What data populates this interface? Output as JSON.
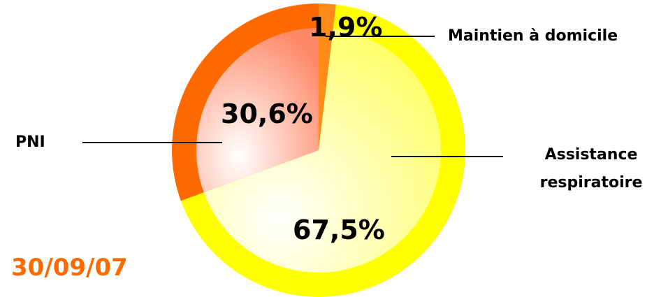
{
  "date_stamp": "30/09/07",
  "chart_data": {
    "type": "pie",
    "categories": [
      "Maintien à domicile",
      "Assistance respiratoire",
      "PNI"
    ],
    "values": [
      1.9,
      67.5,
      30.6
    ],
    "value_labels": [
      "1,9%",
      "67,5%",
      "30,6%"
    ],
    "category_labels": {
      "maintien": "Maintien à domicile",
      "assistance_line1": "Assistance",
      "assistance_line2": "respiratoire",
      "pni": "PNI"
    },
    "colors": {
      "maintien": "#ff8c1a",
      "assistance_ring": "#ffff00",
      "assistance_fill": "#ffff66",
      "pni_ring": "#ff6a00",
      "pni_fill": "#ff8866"
    },
    "start_angle": "top",
    "direction": "clockwise",
    "legend": "none"
  }
}
